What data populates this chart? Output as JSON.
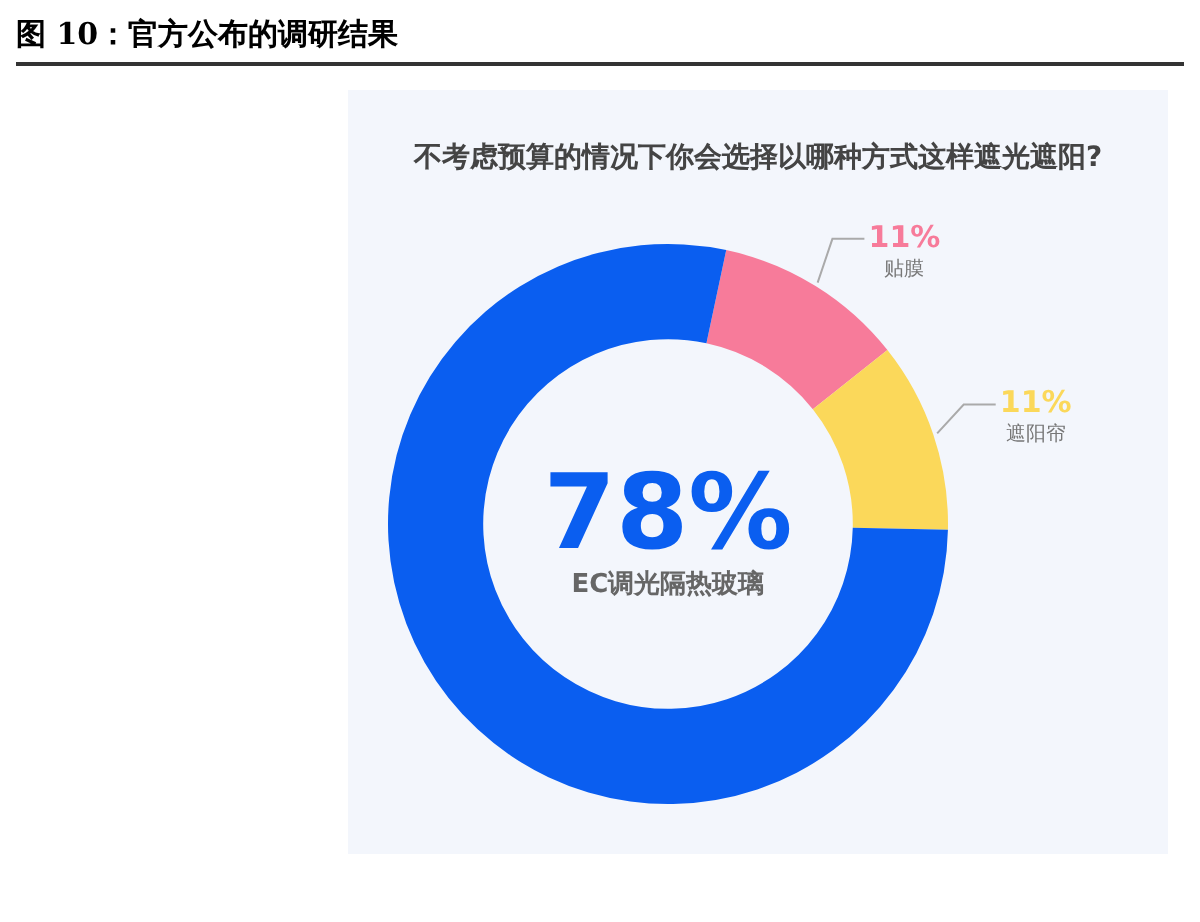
{
  "chart_data": {
    "type": "donut",
    "title": "图 10：官方公布的调研结果",
    "subtitle": "不考虑预算的情况下你会选择以哪种方式这样遮光遮阳?",
    "categories": [
      "贴膜",
      "遮阳帘",
      "EC调光隔热玻璃"
    ],
    "values": [
      11,
      11,
      78
    ],
    "colors": [
      "#f77b9a",
      "#fbd85a",
      "#0a5ef0"
    ],
    "value_labels": [
      "11%",
      "11%",
      "78%"
    ],
    "legend": false
  }
}
